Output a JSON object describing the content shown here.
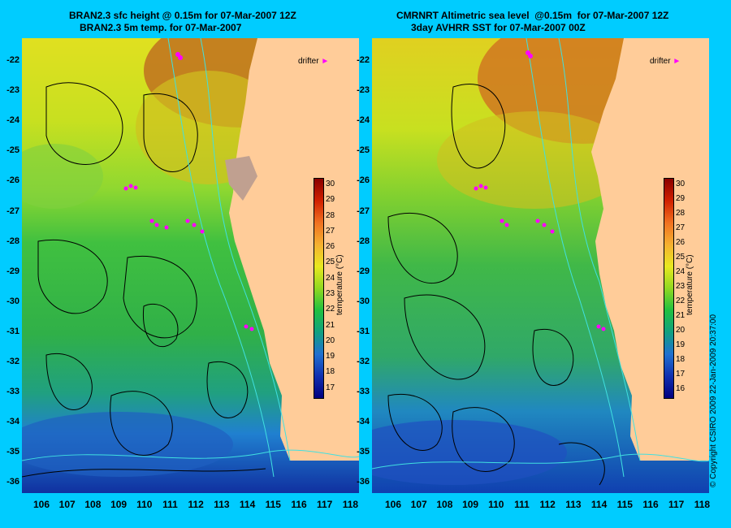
{
  "left_panel": {
    "title_line1": "BRAN2.3 sfc height @ 0.15m for 07-Mar-2007 12Z",
    "title_line2": "BRAN2.3 5m temp. for 07-Mar-2007"
  },
  "right_panel": {
    "title_line1": "CMRNRT Altimetric sea level  @0.15m  for 07-Mar-2007 12Z",
    "title_line2": "3day AVHRR SST for 07-Mar-2007 00Z"
  },
  "drifter_label": "drifter",
  "y_axis_labels": [
    "-22",
    "-23",
    "-24",
    "-25",
    "-26",
    "-27",
    "-28",
    "-29",
    "-30",
    "-31",
    "-32",
    "-33",
    "-34",
    "-35",
    "-36"
  ],
  "x_axis_labels": [
    "106",
    "107",
    "108",
    "109",
    "110",
    "111",
    "112",
    "113",
    "114",
    "115",
    "116",
    "117",
    "118"
  ],
  "colorbar_left": {
    "ticks": [
      "30",
      "29",
      "28",
      "27",
      "26",
      "25",
      "24",
      "23",
      "22",
      "21",
      "20",
      "19",
      "18",
      "17"
    ],
    "unit": "temperature (°C)"
  },
  "colorbar_right": {
    "ticks": [
      "30",
      "29",
      "28",
      "27",
      "26",
      "25",
      "24",
      "23",
      "22",
      "21",
      "20",
      "19",
      "18",
      "17",
      "16"
    ],
    "unit": "temperature (°C)"
  },
  "copyright": "© Copyright CSIRO 2009    22-Jan-2009 20:37:00",
  "colors": {
    "background": "#00ccff",
    "land": "#ffcc99",
    "drifter": "#ff00ff",
    "contour": "#000000",
    "isobath": "#40e0e0"
  }
}
